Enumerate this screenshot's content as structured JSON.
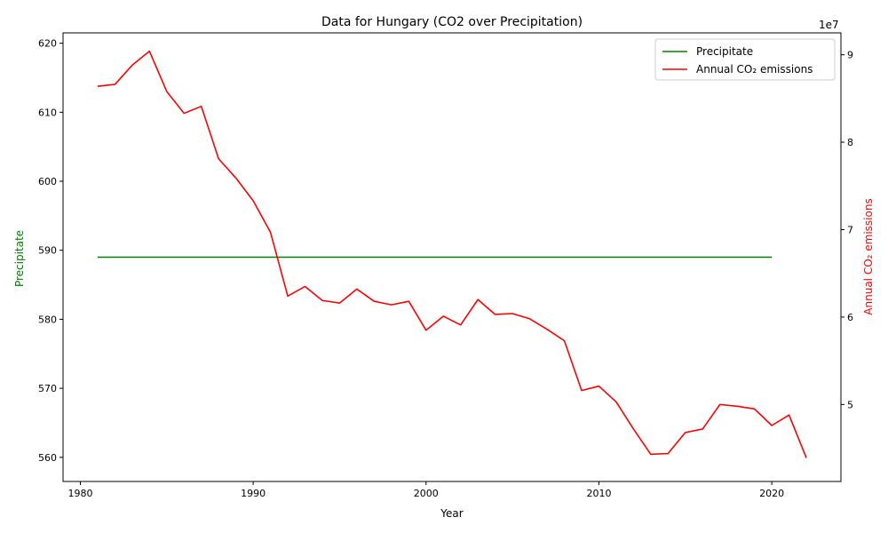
{
  "chart_data": {
    "type": "line",
    "title": "Data for Hungary (CO2 over Precipitation)",
    "xlabel": "Year",
    "ylabel_left": "Precipitate",
    "ylabel_right": "Annual CO₂ emissions",
    "right_axis_offset_label": "1e7",
    "xlim": [
      1979,
      2024
    ],
    "ylim_left": [
      556.5,
      621.5
    ],
    "ylim_right": [
      41200000,
      92500000
    ],
    "x_ticks": [
      1980,
      1990,
      2000,
      2010,
      2020
    ],
    "y_ticks_left": [
      560,
      570,
      580,
      590,
      600,
      610,
      620
    ],
    "y_ticks_right": [
      5,
      6,
      7,
      8,
      9
    ],
    "right_tick_scale": 10000000,
    "legend_position": "upper right",
    "grid": false,
    "series": [
      {
        "name": "Precipitate",
        "axis": "left",
        "color": "#008000",
        "x": [
          1981,
          2020
        ],
        "values": [
          589,
          589
        ]
      },
      {
        "name": "Annual CO₂ emissions",
        "axis": "right",
        "color": "#ff0000",
        "x": [
          1981,
          1982,
          1983,
          1984,
          1985,
          1986,
          1987,
          1988,
          1989,
          1990,
          1991,
          1992,
          1993,
          1994,
          1995,
          1996,
          1997,
          1998,
          1999,
          2000,
          2001,
          2002,
          2003,
          2004,
          2005,
          2006,
          2007,
          2008,
          2009,
          2010,
          2011,
          2012,
          2013,
          2014,
          2015,
          2016,
          2017,
          2018,
          2019,
          2020,
          2021,
          2022
        ],
        "values": [
          86400000,
          86600000,
          88800000,
          90400000,
          85800000,
          83300000,
          84100000,
          78100000,
          75900000,
          73300000,
          69700000,
          62400000,
          63500000,
          61900000,
          61600000,
          63200000,
          61800000,
          61400000,
          61800000,
          58500000,
          60100000,
          59100000,
          62000000,
          60300000,
          60400000,
          59800000,
          58600000,
          57300000,
          51600000,
          52100000,
          50300000,
          47200000,
          44300000,
          44400000,
          46800000,
          47200000,
          50000000,
          49800000,
          49500000,
          47600000,
          48800000,
          43900000
        ]
      }
    ]
  }
}
